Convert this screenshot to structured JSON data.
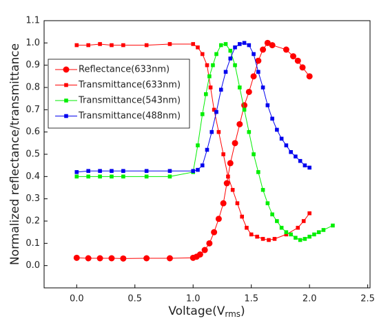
{
  "chart_data": {
    "type": "line",
    "ylabel": "Normalized reflectance/transmittance",
    "xlabel": [
      "Voltage(V",
      "rms",
      ")"
    ],
    "xlim": [
      -0.28,
      2.52
    ],
    "xticks": [
      {
        "value": 0,
        "label": "0.0"
      },
      0.5,
      {
        "value": 1,
        "label": "1.0"
      },
      1.5,
      {
        "value": 2,
        "label": "2.0"
      },
      2.5
    ],
    "ylim": [
      -0.1,
      1.1
    ],
    "yticks": [
      {
        "value": 0,
        "label": "0.0"
      },
      0.1,
      0.2,
      0.3,
      0.4,
      0.5,
      0.6,
      0.7,
      0.8,
      0.9,
      {
        "value": 1,
        "label": "1.0"
      },
      1.1
    ],
    "grid": false,
    "legend": "upper left",
    "series": [
      {
        "name": "Reflectance(633nm)",
        "color": "#ff0000",
        "marker": "circle",
        "x": [
          0,
          0.1,
          0.2,
          0.3,
          0.4,
          0.6,
          0.8,
          1.0,
          1.03,
          1.06,
          1.1,
          1.14,
          1.18,
          1.22,
          1.26,
          1.29,
          1.32,
          1.36,
          1.4,
          1.44,
          1.48,
          1.52,
          1.56,
          1.6,
          1.64,
          1.68,
          1.8,
          1.86,
          1.9,
          1.94,
          2.0
        ],
        "values": [
          0.035,
          0.033,
          0.033,
          0.033,
          0.032,
          0.033,
          0.033,
          0.035,
          0.04,
          0.05,
          0.07,
          0.1,
          0.15,
          0.21,
          0.28,
          0.37,
          0.46,
          0.55,
          0.635,
          0.72,
          0.78,
          0.85,
          0.92,
          0.97,
          1.0,
          0.99,
          0.97,
          0.94,
          0.92,
          0.89,
          0.85
        ]
      },
      {
        "name": "Transmittance(633nm)",
        "color": "#ff0000",
        "marker": "square",
        "x": [
          0,
          0.1,
          0.2,
          0.3,
          0.4,
          0.6,
          0.8,
          1.0,
          1.04,
          1.08,
          1.12,
          1.15,
          1.18,
          1.22,
          1.26,
          1.3,
          1.34,
          1.38,
          1.42,
          1.46,
          1.5,
          1.55,
          1.6,
          1.65,
          1.7,
          1.8,
          1.9,
          1.95,
          2.0
        ],
        "values": [
          0.99,
          0.99,
          0.995,
          0.99,
          0.99,
          0.99,
          0.995,
          0.995,
          0.98,
          0.95,
          0.9,
          0.8,
          0.7,
          0.6,
          0.5,
          0.4,
          0.34,
          0.28,
          0.22,
          0.17,
          0.14,
          0.13,
          0.12,
          0.115,
          0.12,
          0.14,
          0.17,
          0.2,
          0.235
        ]
      },
      {
        "name": "Transmittance(543nm)",
        "color": "#00ee00",
        "marker": "square",
        "x": [
          0,
          0.1,
          0.2,
          0.3,
          0.4,
          0.6,
          0.8,
          1.0,
          1.04,
          1.08,
          1.11,
          1.14,
          1.17,
          1.2,
          1.24,
          1.28,
          1.32,
          1.36,
          1.4,
          1.44,
          1.48,
          1.52,
          1.56,
          1.6,
          1.64,
          1.68,
          1.72,
          1.76,
          1.8,
          1.84,
          1.88,
          1.92,
          1.96,
          2.0,
          2.04,
          2.08,
          2.12,
          2.2
        ],
        "values": [
          0.4,
          0.4,
          0.4,
          0.4,
          0.4,
          0.4,
          0.4,
          0.42,
          0.54,
          0.68,
          0.77,
          0.85,
          0.9,
          0.95,
          0.99,
          0.995,
          0.965,
          0.9,
          0.8,
          0.7,
          0.6,
          0.5,
          0.42,
          0.34,
          0.28,
          0.23,
          0.2,
          0.17,
          0.15,
          0.14,
          0.125,
          0.115,
          0.12,
          0.13,
          0.14,
          0.15,
          0.16,
          0.18
        ]
      },
      {
        "name": "Transmittance(488nm)",
        "color": "#0000ee",
        "marker": "square",
        "x": [
          0,
          0.1,
          0.2,
          0.3,
          0.4,
          0.6,
          0.8,
          1.0,
          1.04,
          1.08,
          1.12,
          1.16,
          1.2,
          1.24,
          1.28,
          1.32,
          1.36,
          1.4,
          1.44,
          1.48,
          1.52,
          1.56,
          1.6,
          1.64,
          1.68,
          1.72,
          1.76,
          1.8,
          1.84,
          1.88,
          1.92,
          1.96,
          2.0
        ],
        "values": [
          0.42,
          0.425,
          0.425,
          0.425,
          0.425,
          0.425,
          0.425,
          0.425,
          0.43,
          0.45,
          0.52,
          0.6,
          0.69,
          0.79,
          0.87,
          0.93,
          0.98,
          0.995,
          1.0,
          0.99,
          0.95,
          0.87,
          0.8,
          0.72,
          0.66,
          0.61,
          0.57,
          0.54,
          0.51,
          0.49,
          0.47,
          0.45,
          0.44
        ]
      }
    ]
  }
}
